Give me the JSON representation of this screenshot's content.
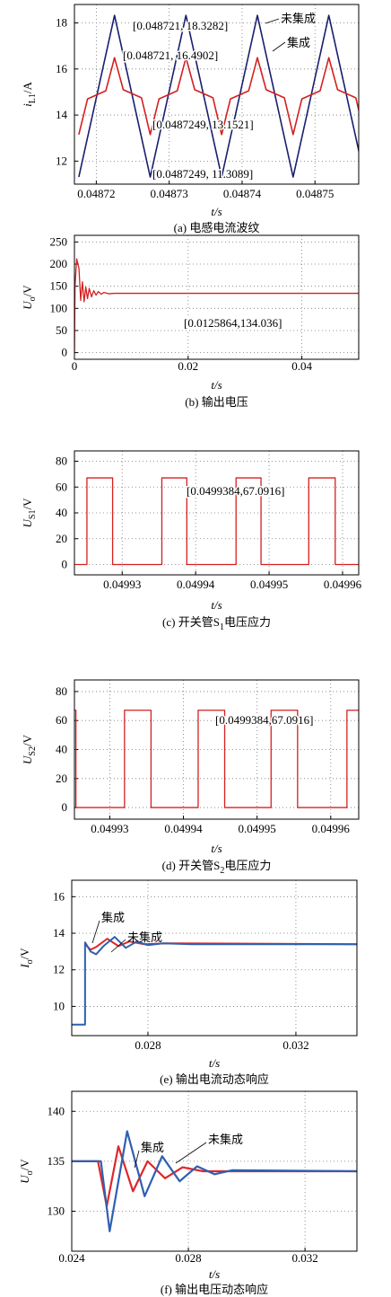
{
  "chart_data": [
    {
      "type": "line",
      "caption": [
        "(a) 电感电流波纹"
      ],
      "x_label": "t/s",
      "y_label": [
        "i",
        "L1",
        "/A"
      ],
      "xlim": [
        0.048717,
        0.048756
      ],
      "xticks": [
        0.04872,
        0.04873,
        0.04874,
        0.04875
      ],
      "ylim": [
        11,
        18.8
      ],
      "yticks": [
        12,
        14,
        16,
        18
      ],
      "grid": true,
      "annotations": [
        "[0.048721, 18.3282]",
        "[0.048721, 16.4902]",
        "[0.0487249, 13.1521]",
        "[0.0487249, 11.3089]"
      ],
      "series": [
        {
          "name": "未集成",
          "color": "#1a1f6e",
          "x": [
            0.0487176,
            0.0487225,
            0.0487274,
            0.0487323,
            0.0487372,
            0.0487421,
            0.048747,
            0.0487519,
            0.0487568
          ],
          "values": [
            11.3089,
            18.3282,
            11.3089,
            18.3282,
            11.3089,
            18.3282,
            11.3089,
            18.3282,
            11.3089
          ]
        },
        {
          "name": "集成",
          "color": "#d42020",
          "x": [
            0.0487176,
            0.0487188,
            0.0487213,
            0.0487225,
            0.0487237,
            0.0487262,
            0.0487274,
            0.0487286,
            0.0487311,
            0.0487323,
            0.0487335,
            0.048736,
            0.0487372,
            0.0487384,
            0.0487409,
            0.0487421,
            0.0487433,
            0.0487458,
            0.048747,
            0.0487482,
            0.0487507,
            0.0487519,
            0.0487531,
            0.0487556,
            0.0487568
          ],
          "values": [
            13.1521,
            14.7,
            15.05,
            16.4902,
            15.1,
            14.75,
            13.1521,
            14.7,
            15.05,
            16.4902,
            15.1,
            14.75,
            13.1521,
            14.7,
            15.05,
            16.4902,
            15.1,
            14.75,
            13.1521,
            14.7,
            15.05,
            16.4902,
            15.1,
            14.75,
            13.1521
          ]
        }
      ]
    },
    {
      "type": "line",
      "caption": [
        "(b) 输出电压"
      ],
      "x_label": "t/s",
      "y_label": [
        "U",
        "o",
        "/V"
      ],
      "xlim": [
        0,
        0.05
      ],
      "xticks": [
        0,
        0.02,
        0.04
      ],
      "ylim": [
        -15,
        265
      ],
      "yticks": [
        0,
        50,
        100,
        150,
        200,
        250
      ],
      "grid": true,
      "annotations": [
        "[0.0125864,134.036]"
      ],
      "series": [
        {
          "color": "#d42020",
          "x": [
            0,
            0.0001,
            0.0004,
            0.0008,
            0.0011,
            0.0014,
            0.0017,
            0.002,
            0.0023,
            0.0026,
            0.003,
            0.0034,
            0.0038,
            0.0042,
            0.0047,
            0.0052,
            0.006,
            0.007,
            0.05
          ],
          "values": [
            0,
            150,
            212,
            190,
            118,
            160,
            115,
            148,
            122,
            145,
            126,
            140,
            130,
            138,
            132,
            136,
            133,
            134,
            134.036
          ]
        }
      ]
    },
    {
      "type": "line",
      "caption": [
        "(c) 开关管S",
        "1",
        "电压应力"
      ],
      "x_label": "t/s",
      "y_label": [
        "U",
        "S1",
        "/V"
      ],
      "xlim": [
        0.0499235,
        0.0499622
      ],
      "xticks": [
        0.04993,
        0.04994,
        0.04995,
        0.04996
      ],
      "ylim": [
        -8,
        88
      ],
      "yticks": [
        0,
        20,
        40,
        60,
        80
      ],
      "grid": true,
      "annotations": [
        "[0.0499384,67.0916]"
      ],
      "series": [
        {
          "color": "#d42020",
          "x": [
            0.0499235,
            0.0499252,
            0.0499252,
            0.0499287,
            0.0499287,
            0.0499354,
            0.0499354,
            0.0499388,
            0.0499388,
            0.0499455,
            0.0499455,
            0.0499489,
            0.0499489,
            0.0499554,
            0.0499554,
            0.049959,
            0.049959,
            0.0499622
          ],
          "values": [
            0,
            0,
            67.0916,
            67.0916,
            0,
            0,
            67.0916,
            67.0916,
            0,
            0,
            67.0916,
            67.0916,
            0,
            0,
            67.0916,
            67.0916,
            0,
            0
          ]
        }
      ]
    },
    {
      "type": "line",
      "caption": [
        "(d) 开关管S",
        "2",
        "电压应力"
      ],
      "x_label": "t/s",
      "y_label": [
        "U",
        "S2",
        "/V"
      ],
      "xlim": [
        0.0499252,
        0.0499638
      ],
      "xticks": [
        0.04993,
        0.04994,
        0.04995,
        0.04996
      ],
      "ylim": [
        -8,
        88
      ],
      "yticks": [
        0,
        20,
        40,
        60,
        80
      ],
      "grid": true,
      "annotations": [
        "[0.0499384,67.0916]"
      ],
      "series": [
        {
          "color": "#d42020",
          "x": [
            0.0499252,
            0.0499254,
            0.0499254,
            0.049932,
            0.049932,
            0.0499356,
            0.0499356,
            0.049942,
            0.049942,
            0.0499456,
            0.0499456,
            0.0499519,
            0.0499519,
            0.0499555,
            0.0499555,
            0.0499622,
            0.0499622,
            0.0499638
          ],
          "values": [
            67.0916,
            67.0916,
            0,
            0,
            67.0916,
            67.0916,
            0,
            0,
            67.0916,
            67.0916,
            0,
            0,
            67.0916,
            67.0916,
            0,
            0,
            67.0916,
            67.0916
          ]
        }
      ]
    },
    {
      "type": "line",
      "caption": [
        "(e) 输出电流动态响应"
      ],
      "x_label": "t/s",
      "y_label": [
        "I",
        "o",
        "/V"
      ],
      "xlim": [
        0.02594,
        0.03365
      ],
      "xticks": [
        0.028,
        0.032
      ],
      "ylim": [
        8.4,
        16.9
      ],
      "yticks": [
        10,
        12,
        14,
        16
      ],
      "grid": true,
      "series": [
        {
          "name": "集成",
          "color": "#e0262a",
          "x": [
            0.0263,
            0.02645,
            0.0266,
            0.0269,
            0.0272,
            0.0275,
            0.0279,
            0.0285,
            0.03365
          ],
          "values": [
            13.4,
            13.1,
            13.25,
            13.7,
            13.3,
            13.55,
            13.4,
            13.45,
            13.4
          ]
        },
        {
          "name": "未集成",
          "color": "#2f5fb0",
          "x": [
            0.02594,
            0.0263,
            0.0263,
            0.02645,
            0.0266,
            0.0268,
            0.0271,
            0.0274,
            0.0277,
            0.028,
            0.0284,
            0.0292,
            0.03365
          ],
          "values": [
            9,
            9,
            13.5,
            13.0,
            12.85,
            13.3,
            13.8,
            13.2,
            13.55,
            13.35,
            13.45,
            13.4,
            13.4
          ]
        }
      ]
    },
    {
      "type": "line",
      "caption": [
        "(f) 输出电压动态响应"
      ],
      "x_label": "t/s",
      "y_label": [
        "U",
        "o",
        "/V"
      ],
      "xlim": [
        0.024,
        0.03378
      ],
      "xticks": [
        0.024,
        0.028,
        0.032
      ],
      "ylim": [
        126,
        142
      ],
      "yticks": [
        130,
        135,
        140
      ],
      "grid": true,
      "series": [
        {
          "name": "集成",
          "color": "#e0262a",
          "x": [
            0.024,
            0.0249,
            0.0252,
            0.0256,
            0.0261,
            0.0266,
            0.0272,
            0.0278,
            0.0285,
            0.03378
          ],
          "values": [
            135,
            135,
            130.5,
            136.5,
            132,
            135,
            133.3,
            134.4,
            134,
            134
          ]
        },
        {
          "name": "未集成",
          "color": "#2f5fb0",
          "x": [
            0.024,
            0.025,
            0.0253,
            0.0259,
            0.0265,
            0.0271,
            0.0277,
            0.0283,
            0.0289,
            0.0295,
            0.03378
          ],
          "values": [
            135,
            135,
            128,
            138,
            131.5,
            135.5,
            133,
            134.5,
            133.7,
            134.1,
            134
          ]
        }
      ]
    }
  ]
}
